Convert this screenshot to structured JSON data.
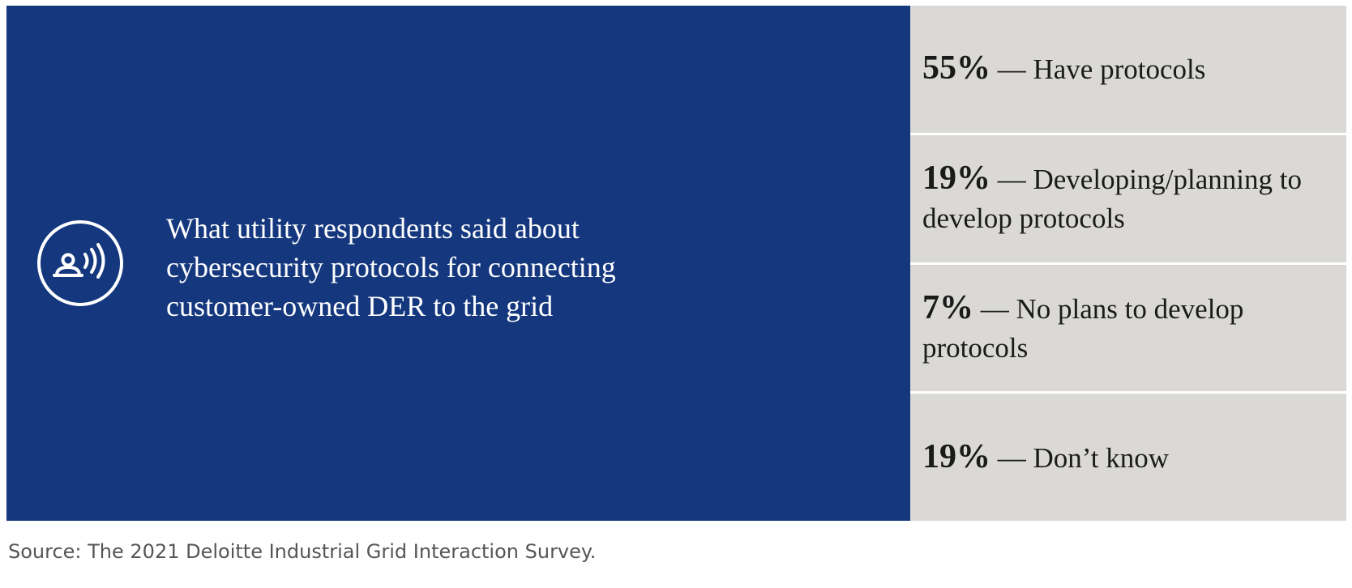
{
  "colors": {
    "left_panel_background": "#14377e",
    "right_panel_background": "#dad9d6",
    "headline_text": "#ffffff",
    "stat_text": "#1a1a1a",
    "source_text": "#555555"
  },
  "icon": "person-broadcasting-signal-icon",
  "chart_data": {
    "type": "table",
    "title": "What utility respondents said about cybersecurity protocols for connecting customer-owned DER to the grid",
    "categories": [
      "Have protocols",
      "Developing/planning to develop protocols",
      "No plans to develop protocols",
      "Don’t know"
    ],
    "values": [
      55,
      19,
      7,
      19
    ],
    "unit": "%",
    "rows": [
      {
        "percent": "55%",
        "label": "Have protocols"
      },
      {
        "percent": "19%",
        "label": "Developing/planning to develop protocols"
      },
      {
        "percent": "7%",
        "label": "No plans to develop protocols"
      },
      {
        "percent": "19%",
        "label": "Don’t know"
      }
    ],
    "source": "Source: The 2021 Deloitte Industrial Grid Interaction Survey."
  }
}
